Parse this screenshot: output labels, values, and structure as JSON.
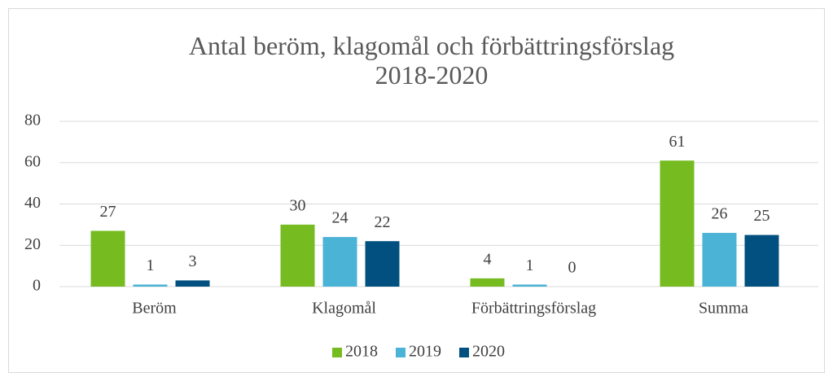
{
  "chart_data": {
    "type": "bar",
    "title": "Antal beröm, klagomål och förbättringsförslag 2018-2020",
    "categories": [
      "Beröm",
      "Klagomål",
      "Förbättringsförslag",
      "Summa"
    ],
    "series": [
      {
        "name": "2018",
        "color": "#76bc21",
        "values": [
          27,
          30,
          4,
          61
        ]
      },
      {
        "name": "2019",
        "color": "#4bb3d6",
        "values": [
          1,
          24,
          1,
          26
        ]
      },
      {
        "name": "2020",
        "color": "#01507f",
        "values": [
          3,
          22,
          0,
          25
        ]
      }
    ],
    "ylim": [
      0,
      80
    ],
    "yticks": [
      0,
      20,
      40,
      60,
      80
    ],
    "grid": true,
    "legend": "bottom"
  }
}
